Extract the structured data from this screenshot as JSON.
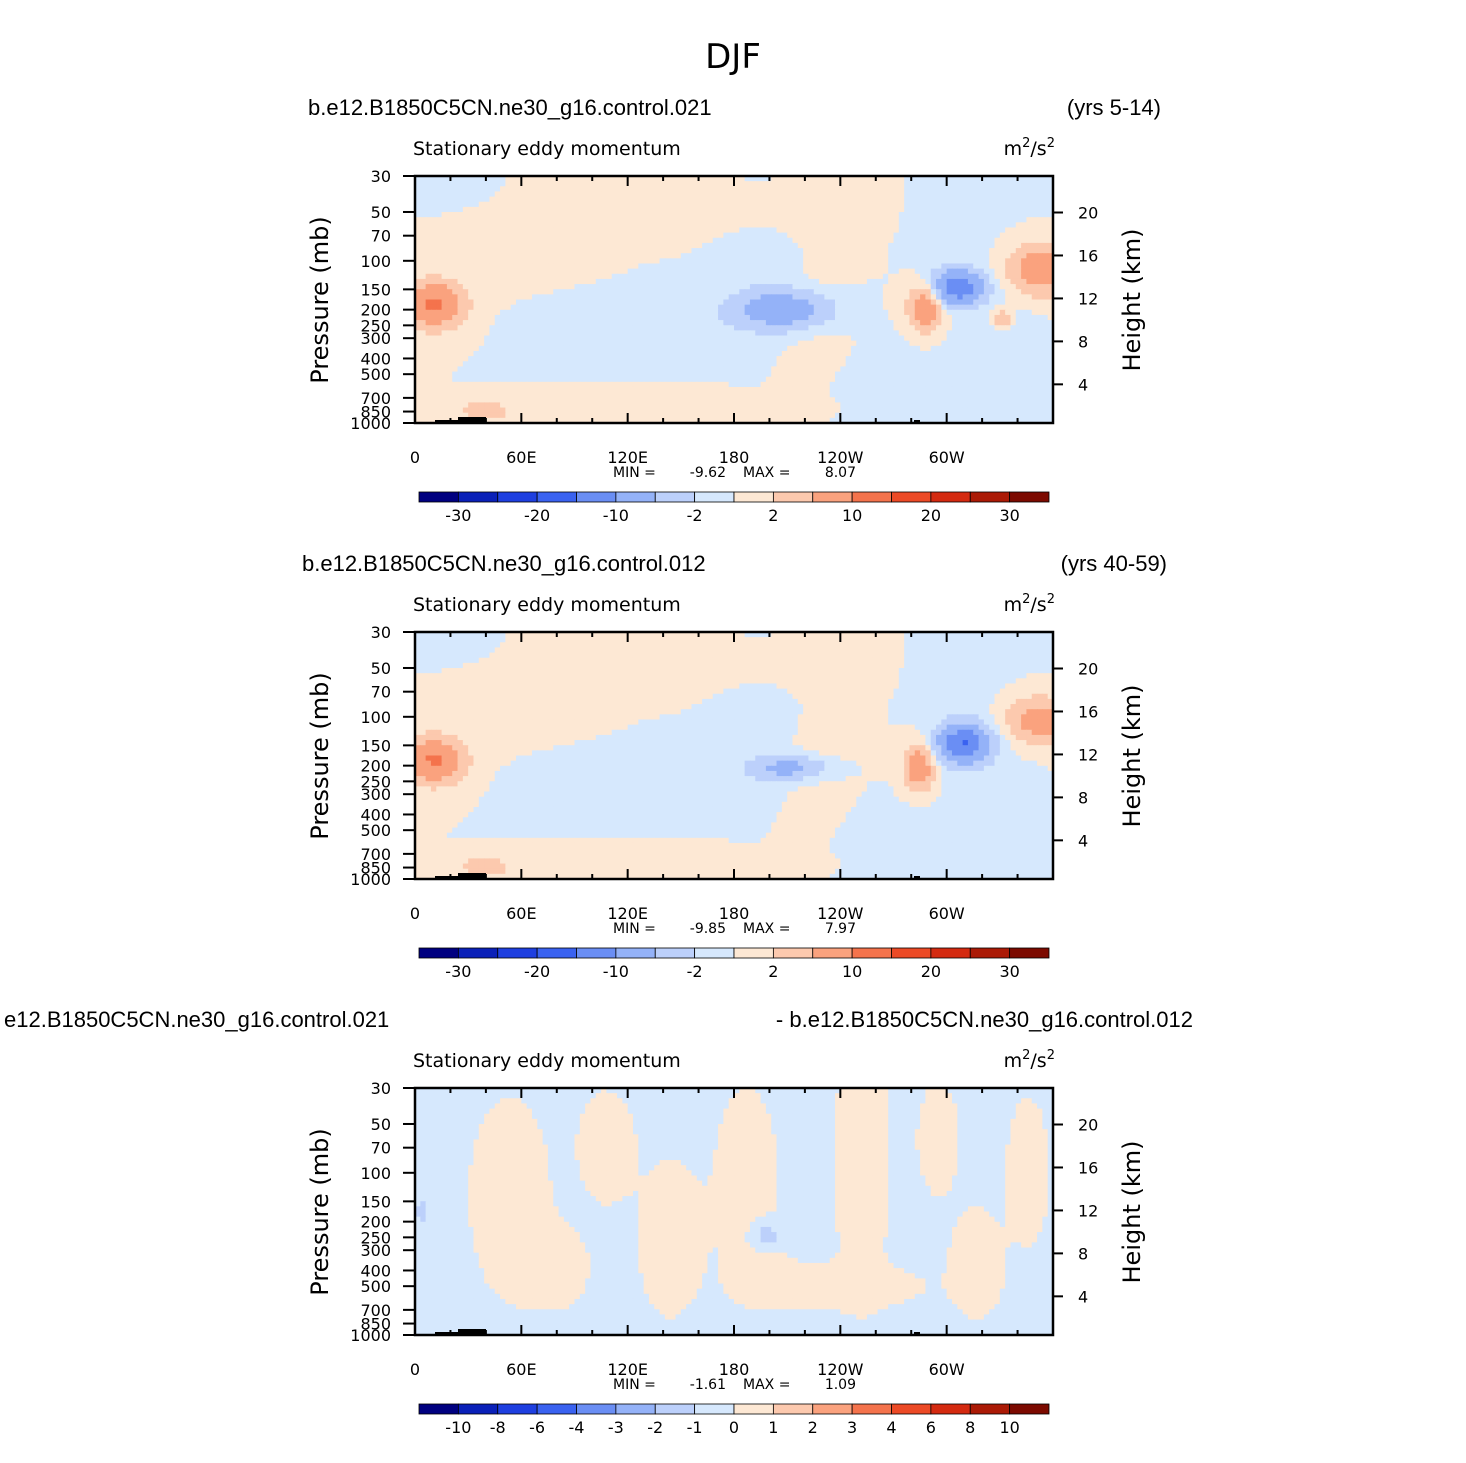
{
  "figure_title": "DJF",
  "colors": {
    "neg": [
      "#000080",
      "#0a20b8",
      "#1e3fe0",
      "#3a62f0",
      "#6a8ef4",
      "#94b2f8",
      "#bcd0fb",
      "#d6e8fd"
    ],
    "pos": [
      "#fde8d4",
      "#fcc9ae",
      "#faa27e",
      "#f4734c",
      "#ec4a26",
      "#d42a10",
      "#ab1a06",
      "#7c0a00"
    ]
  },
  "chart_data": [
    {
      "type": "heatmap",
      "case_left": "b.e12.B1850C5CN.ne30_g16.control.021",
      "case_right": "(yrs 5-14)",
      "variable": "Stationary eddy momentum",
      "units_base": "m",
      "units_sup1": "2",
      "units_mid": "/s",
      "units_sup2": "2",
      "ylabel_left": "Pressure (mb)",
      "ylabel_right": "Height (km)",
      "xticks": [
        "0",
        "60E",
        "120E",
        "180",
        "120W",
        "60W"
      ],
      "yticks_left": [
        "30",
        "50",
        "70",
        "100",
        "150",
        "200",
        "250",
        "300",
        "400",
        "500",
        "700",
        "850",
        "1000"
      ],
      "yticks_right": [
        "20",
        "16",
        "12",
        "8",
        "4"
      ],
      "min_label": "MIN =",
      "min_value": "-9.62",
      "max_label": "MAX =",
      "max_value": "8.07",
      "colorbar_labels": [
        "-30",
        "-20",
        "-10",
        "-2",
        "2",
        "10",
        "20",
        "30"
      ]
    },
    {
      "type": "heatmap",
      "case_left": "b.e12.B1850C5CN.ne30_g16.control.012",
      "case_right": "(yrs 40-59)",
      "variable": "Stationary eddy momentum",
      "units_base": "m",
      "units_sup1": "2",
      "units_mid": "/s",
      "units_sup2": "2",
      "ylabel_left": "Pressure (mb)",
      "ylabel_right": "Height (km)",
      "xticks": [
        "0",
        "60E",
        "120E",
        "180",
        "120W",
        "60W"
      ],
      "yticks_left": [
        "30",
        "50",
        "70",
        "100",
        "150",
        "200",
        "250",
        "300",
        "400",
        "500",
        "700",
        "850",
        "1000"
      ],
      "yticks_right": [
        "20",
        "16",
        "12",
        "8",
        "4"
      ],
      "min_label": "MIN =",
      "min_value": "-9.85",
      "max_label": "MAX =",
      "max_value": "7.97",
      "colorbar_labels": [
        "-30",
        "-20",
        "-10",
        "-2",
        "2",
        "10",
        "20",
        "30"
      ]
    },
    {
      "type": "heatmap",
      "case_left": "e12.B1850C5CN.ne30_g16.control.021",
      "case_right": "- b.e12.B1850C5CN.ne30_g16.control.012",
      "variable": "Stationary eddy momentum",
      "units_base": "m",
      "units_sup1": "2",
      "units_mid": "/s",
      "units_sup2": "2",
      "ylabel_left": "Pressure (mb)",
      "ylabel_right": "Height (km)",
      "xticks": [
        "0",
        "60E",
        "120E",
        "180",
        "120W",
        "60W"
      ],
      "yticks_left": [
        "30",
        "50",
        "70",
        "100",
        "150",
        "200",
        "250",
        "300",
        "400",
        "500",
        "700",
        "850",
        "1000"
      ],
      "yticks_right": [
        "20",
        "16",
        "12",
        "8",
        "4"
      ],
      "min_label": "MIN =",
      "min_value": "-1.61",
      "max_label": "MAX =",
      "max_value": "1.09",
      "colorbar_labels": [
        "-10",
        "-8",
        "-6",
        "-4",
        "-3",
        "-2",
        "-1",
        "0",
        "1",
        "2",
        "3",
        "4",
        "6",
        "8",
        "10"
      ]
    }
  ]
}
